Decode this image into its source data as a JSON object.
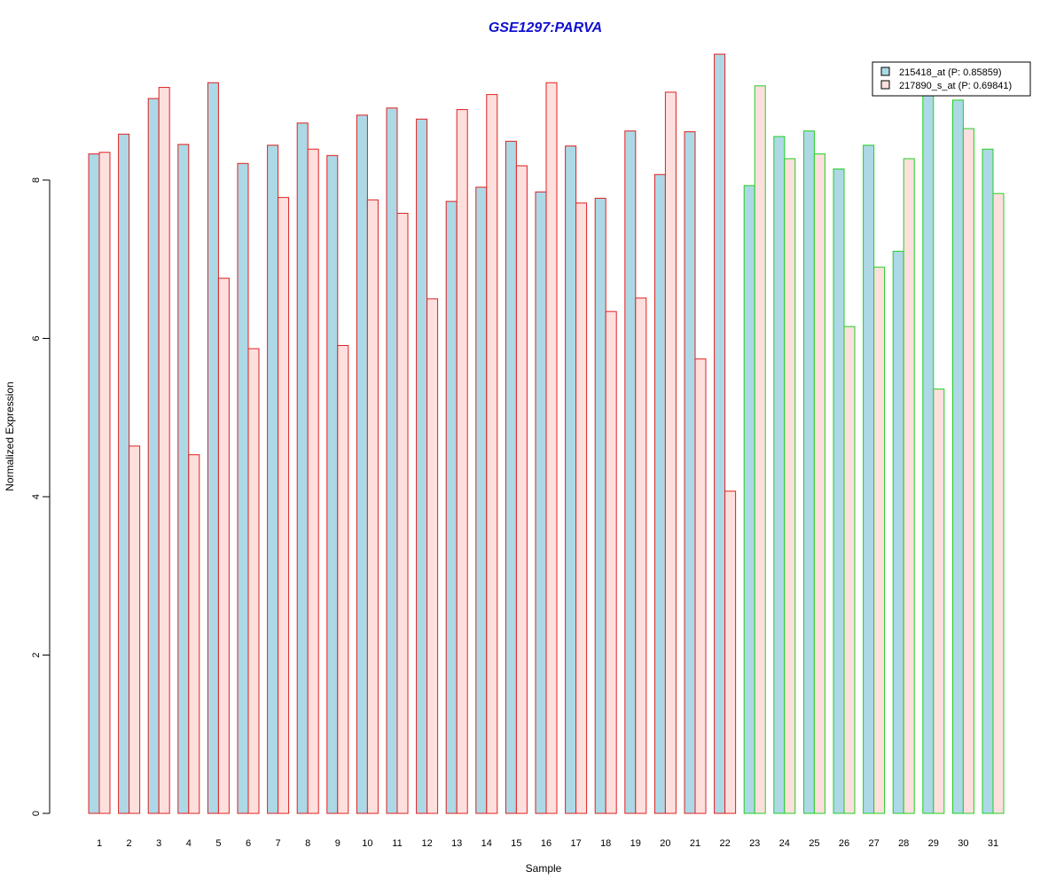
{
  "chart_data": {
    "type": "bar",
    "title": "GSE1297:PARVA",
    "xlabel": "Sample",
    "ylabel": "Normalized Expression",
    "ylim": [
      0,
      9.6
    ],
    "yticks": [
      0,
      2,
      4,
      6,
      8
    ],
    "categories": [
      "1",
      "2",
      "3",
      "4",
      "5",
      "6",
      "7",
      "8",
      "9",
      "10",
      "11",
      "12",
      "13",
      "14",
      "15",
      "16",
      "17",
      "18",
      "19",
      "20",
      "21",
      "22",
      "23",
      "24",
      "25",
      "26",
      "27",
      "28",
      "29",
      "30",
      "31"
    ],
    "group_border_colors": [
      "#e02020",
      "#e02020",
      "#e02020",
      "#e02020",
      "#e02020",
      "#e02020",
      "#e02020",
      "#e02020",
      "#e02020",
      "#e02020",
      "#e02020",
      "#e02020",
      "#e02020",
      "#e02020",
      "#e02020",
      "#e02020",
      "#e02020",
      "#e02020",
      "#e02020",
      "#e02020",
      "#e02020",
      "#e02020",
      "#20d020",
      "#20d020",
      "#20d020",
      "#20d020",
      "#20d020",
      "#20d020",
      "#20d020",
      "#20d020",
      "#20d020"
    ],
    "series": [
      {
        "name": "215418_at (P: 0.85859)",
        "fill": "#add8e6",
        "values": [
          8.33,
          8.58,
          9.03,
          8.45,
          9.23,
          8.21,
          8.44,
          8.72,
          8.31,
          8.82,
          8.91,
          8.77,
          7.73,
          7.91,
          8.49,
          7.85,
          8.43,
          7.77,
          8.62,
          8.07,
          8.61,
          9.59,
          7.93,
          8.55,
          8.62,
          8.14,
          8.44,
          7.1,
          9.13,
          9.01,
          8.39
        ]
      },
      {
        "name": "217890_s_at (P: 0.69841)",
        "fill": "#fde0dd",
        "values": [
          8.35,
          4.64,
          9.17,
          4.53,
          6.76,
          5.87,
          7.78,
          8.39,
          5.91,
          7.75,
          7.58,
          6.5,
          8.89,
          9.08,
          8.18,
          9.23,
          7.71,
          6.34,
          6.51,
          9.11,
          5.74,
          4.07,
          9.19,
          8.27,
          8.33,
          6.15,
          6.9,
          8.27,
          5.36,
          8.65,
          7.83
        ]
      }
    ],
    "legend_position": "top-right",
    "grid": false
  }
}
